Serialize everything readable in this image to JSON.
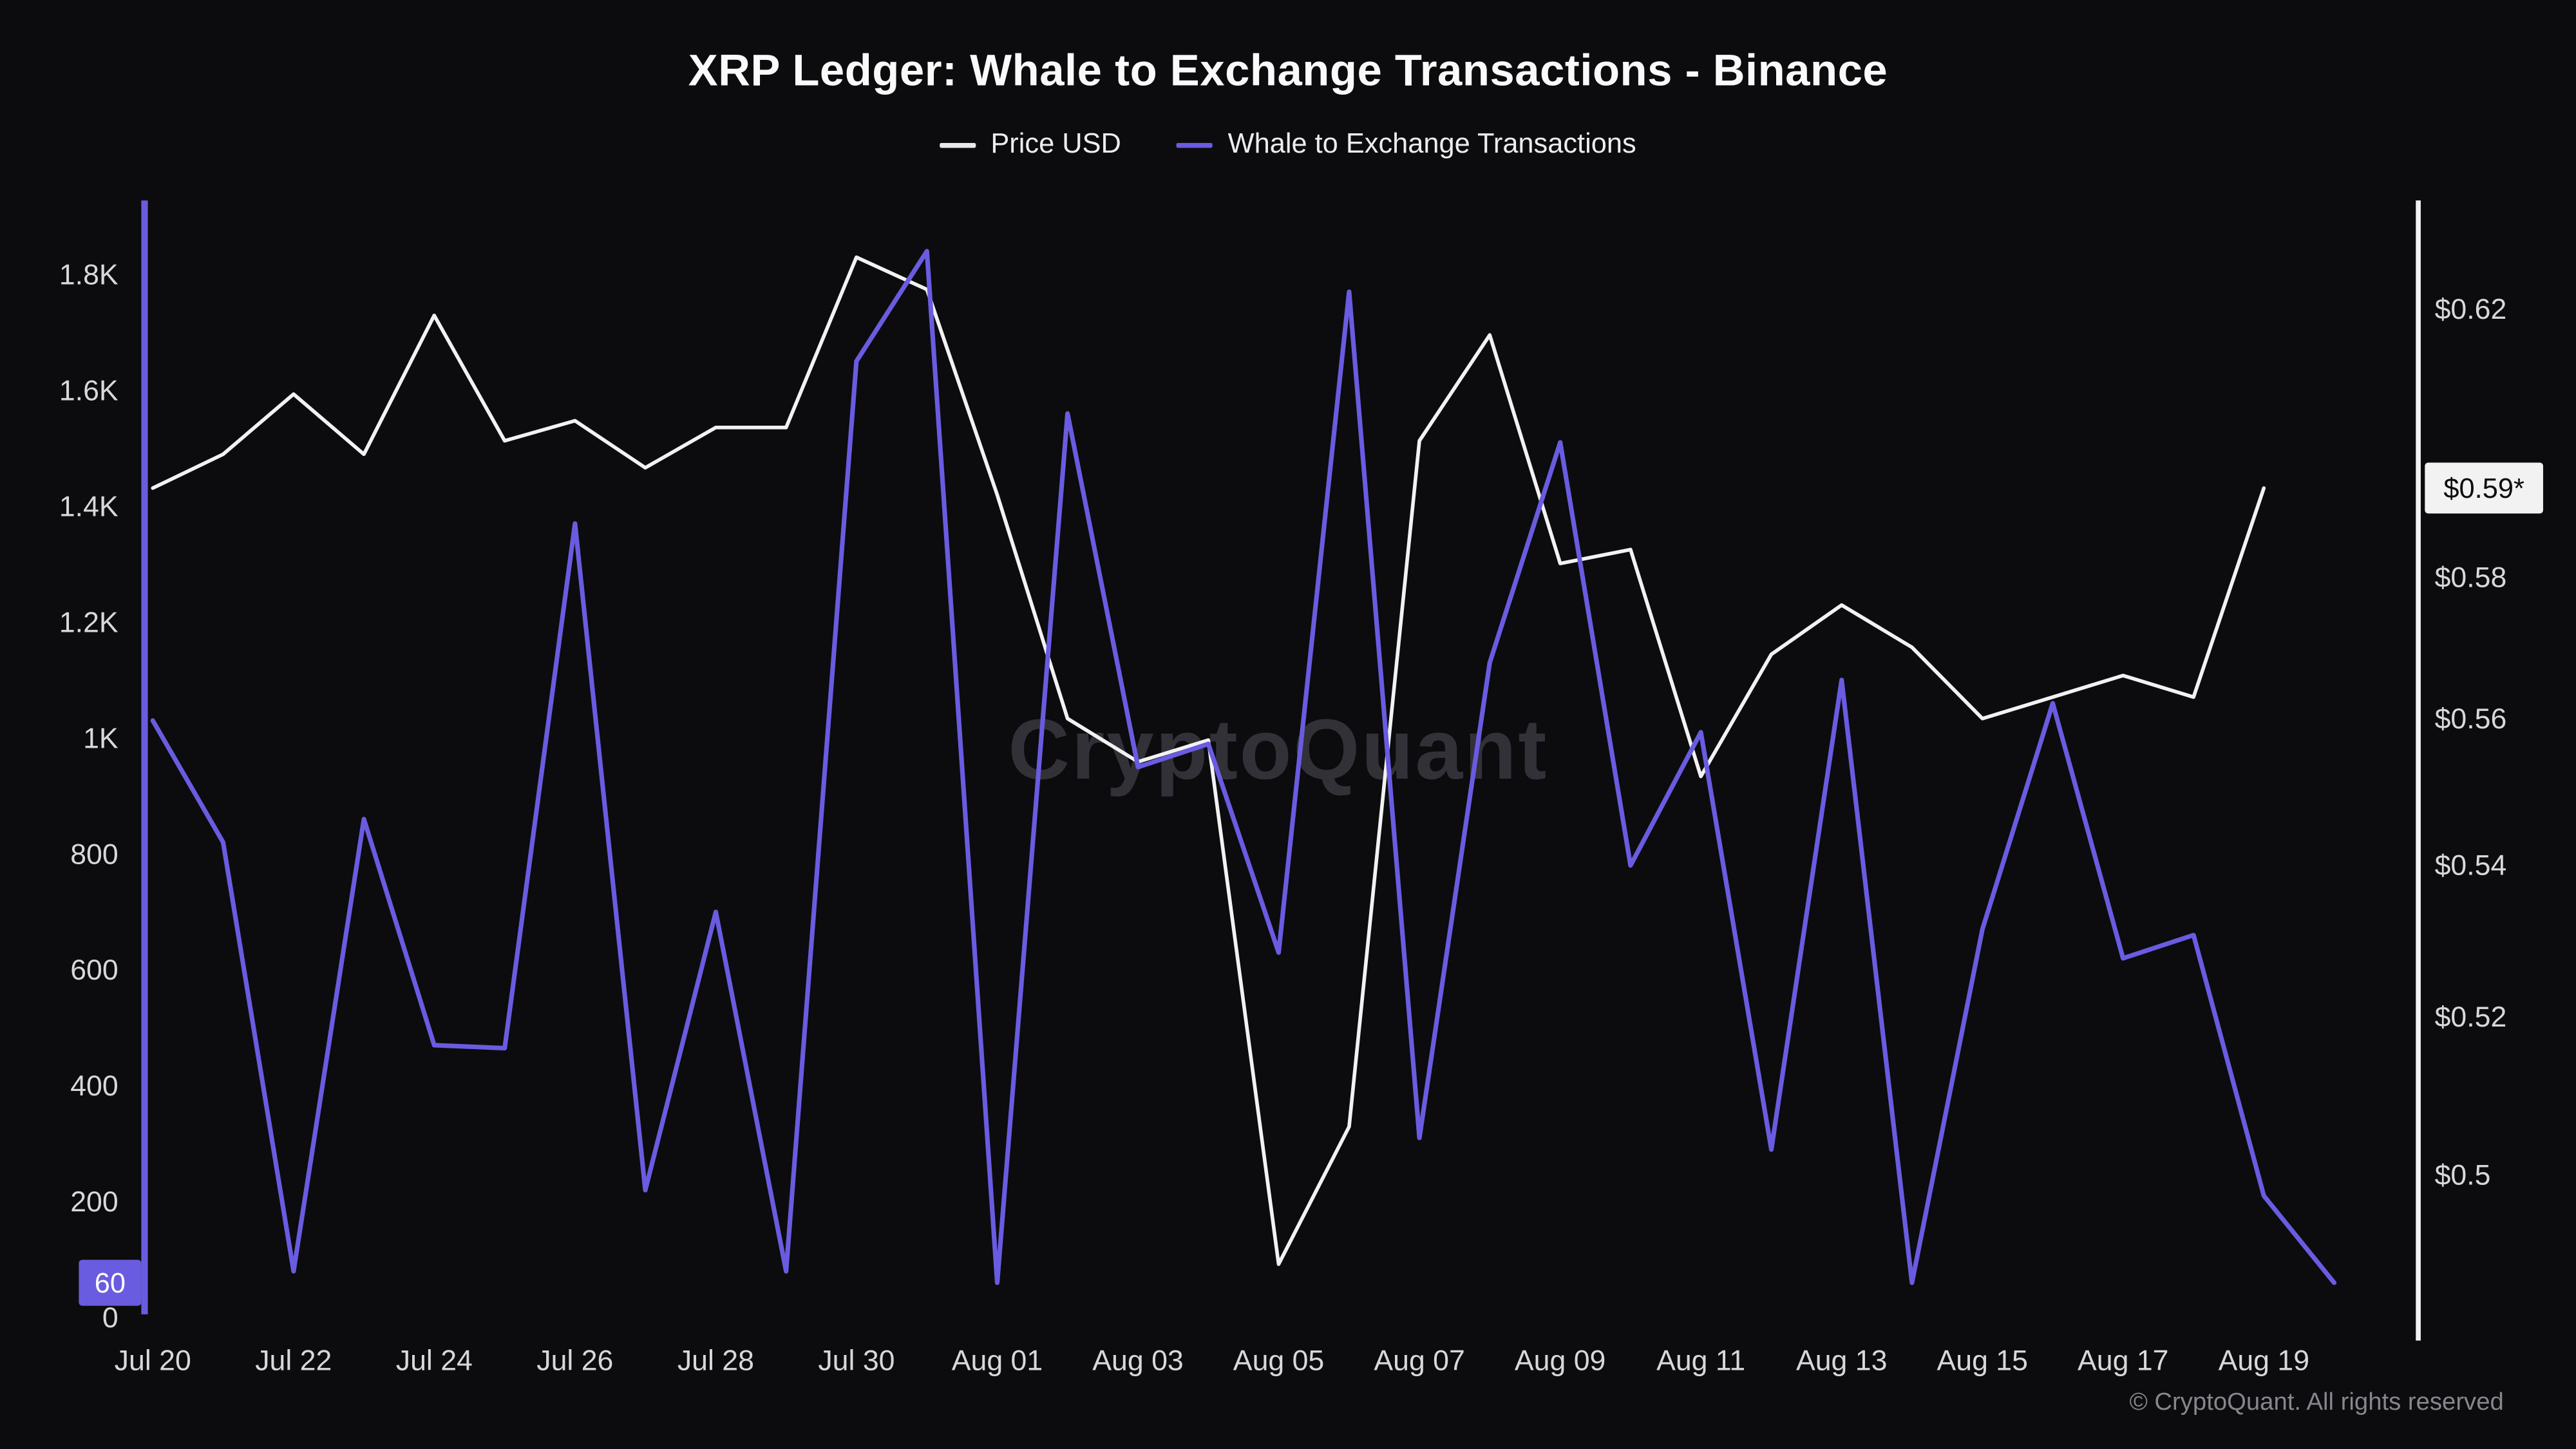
{
  "header": {
    "title": "XRP Ledger: Whale to Exchange Transactions - Binance"
  },
  "legend": {
    "items": [
      {
        "label": "Price USD",
        "color": "#e8e8e8"
      },
      {
        "label": "Whale to Exchange Transactions",
        "color": "#6a5ce0"
      }
    ]
  },
  "watermark": "CryptoQuant",
  "footer": {
    "copyright": "© CryptoQuant. All rights reserved"
  },
  "axis_badges": {
    "left": "60",
    "right": "$0.59*"
  },
  "colors": {
    "background": "#0c0c0e",
    "price_line": "#f2f2f2",
    "whale_line": "#6a5ce0",
    "axis_text": "#d8d8db",
    "watermark": "#313137",
    "badge_right_bg": "#f2f2f2",
    "badge_right_text": "#0d0d0f",
    "badge_left_bg": "#6a5ce0",
    "badge_left_text": "#ffffff"
  },
  "chart_data": {
    "type": "line",
    "title": "XRP Ledger: Whale to Exchange Transactions - Binance",
    "x": [
      "Jul 20",
      "Jul 21",
      "Jul 22",
      "Jul 23",
      "Jul 24",
      "Jul 25",
      "Jul 26",
      "Jul 27",
      "Jul 28",
      "Jul 29",
      "Jul 30",
      "Jul 31",
      "Aug 01",
      "Aug 02",
      "Aug 03",
      "Aug 04",
      "Aug 05",
      "Aug 06",
      "Aug 07",
      "Aug 08",
      "Aug 09",
      "Aug 10",
      "Aug 11",
      "Aug 12",
      "Aug 13",
      "Aug 14",
      "Aug 15",
      "Aug 16",
      "Aug 17",
      "Aug 18",
      "Aug 19",
      "Aug 20"
    ],
    "series": [
      {
        "name": "Price USD",
        "axis": "right",
        "color": "#f2f2f2",
        "values": [
          0.593,
          0.598,
          0.607,
          0.598,
          0.619,
          0.6,
          0.603,
          0.596,
          0.602,
          0.602,
          0.628,
          0.623,
          0.592,
          0.56,
          0.554,
          0.557,
          0.489,
          0.506,
          0.6,
          0.616,
          0.582,
          0.584,
          0.552,
          0.569,
          0.576,
          0.57,
          0.56,
          0.563,
          0.566,
          0.563,
          0.593,
          null
        ]
      },
      {
        "name": "Whale to Exchange Transactions",
        "axis": "left",
        "color": "#6a5ce0",
        "values": [
          1030,
          820,
          80,
          860,
          470,
          465,
          1370,
          220,
          700,
          80,
          1650,
          1840,
          60,
          1560,
          950,
          990,
          630,
          1770,
          310,
          1130,
          1510,
          780,
          1010,
          290,
          1100,
          60,
          670,
          1060,
          620,
          660,
          210,
          60
        ]
      }
    ],
    "left_axis": {
      "label": "Whale to Exchange Transactions",
      "ticks": [
        "0",
        "200",
        "400",
        "600",
        "800",
        "1K",
        "1.2K",
        "1.4K",
        "1.6K",
        "1.8K"
      ],
      "tick_values": [
        0,
        200,
        400,
        600,
        800,
        1000,
        1200,
        1400,
        1600,
        1800
      ],
      "range": [
        0,
        1930
      ],
      "latest_value": 60
    },
    "right_axis": {
      "label": "Price USD",
      "ticks": [
        "$0.62",
        "$0.58",
        "$0.56",
        "$0.54",
        "$0.52",
        "$0.5"
      ],
      "tick_values": [
        0.62,
        0.58,
        0.56,
        0.54,
        0.52,
        0.5
      ],
      "scale": "log",
      "latest_value": "$0.59*"
    },
    "x_tick_labels": [
      "Jul 20",
      "Jul 22",
      "Jul 24",
      "Jul 26",
      "Jul 28",
      "Jul 30",
      "Aug 01",
      "Aug 03",
      "Aug 05",
      "Aug 07",
      "Aug 09",
      "Aug 11",
      "Aug 13",
      "Aug 15",
      "Aug 17",
      "Aug 19"
    ],
    "grid": false,
    "legend_position": "top"
  }
}
